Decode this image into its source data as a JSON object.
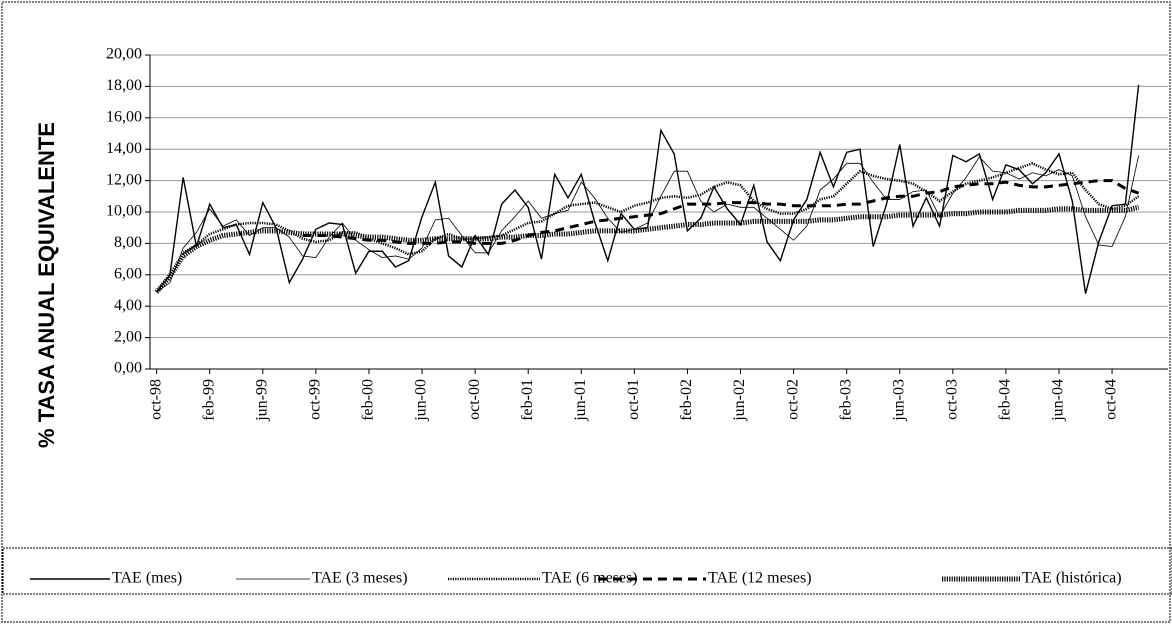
{
  "chart_data": {
    "type": "line",
    "y_axis_label": "% TASA ANUAL EQUIVALENTE",
    "categories": [
      "oct-98",
      null,
      null,
      null,
      "feb-99",
      null,
      null,
      null,
      "jun-99",
      null,
      null,
      null,
      "oct-99",
      null,
      null,
      null,
      "feb-00",
      null,
      null,
      null,
      "jun-00",
      null,
      null,
      null,
      "oct-00",
      null,
      null,
      null,
      "feb-01",
      null,
      null,
      null,
      "jun-01",
      null,
      null,
      null,
      "oct-01",
      null,
      null,
      null,
      "feb-02",
      null,
      null,
      null,
      "jun-02",
      null,
      null,
      null,
      "oct-02",
      null,
      null,
      null,
      "feb-03",
      null,
      null,
      null,
      "jun-03",
      null,
      null,
      null,
      "oct-03",
      null,
      null,
      null,
      "feb-04",
      null,
      null,
      null,
      "jun-04",
      null,
      null,
      null,
      "oct-04",
      null,
      null
    ],
    "ylim": [
      0,
      20
    ],
    "yticks": [
      {
        "value": 0,
        "label": "0,00"
      },
      {
        "value": 2,
        "label": "2,00"
      },
      {
        "value": 4,
        "label": "4,00"
      },
      {
        "value": 6,
        "label": "6,00"
      },
      {
        "value": 8,
        "label": "8,00"
      },
      {
        "value": 10,
        "label": "10,00"
      },
      {
        "value": 12,
        "label": "12,00"
      },
      {
        "value": 14,
        "label": "14,00"
      },
      {
        "value": 16,
        "label": "16,00"
      },
      {
        "value": 18,
        "label": "18,00"
      },
      {
        "value": 20,
        "label": "20,00"
      }
    ],
    "grid": true,
    "legend": "bottom",
    "series": [
      {
        "name": "TAE (mes)",
        "color": "#000000",
        "line_style": "solid",
        "width": 1.4,
        "values": [
          4.9,
          6,
          12.2,
          7.8,
          10.5,
          9.0,
          9.2,
          7.3,
          10.6,
          9.0,
          5.5,
          7.0,
          8.9,
          9.3,
          9.2,
          6.1,
          7.5,
          7.5,
          6.5,
          6.9,
          9.7,
          11.9,
          7.2,
          6.5,
          8.5,
          7.3,
          10.5,
          11.4,
          10.3,
          7.0,
          12.4,
          10.9,
          12.4,
          9.4,
          6.9,
          9.9,
          8.9,
          9.0,
          15.2,
          13.7,
          8.8,
          9.6,
          11.6,
          10.2,
          9.2,
          11.7,
          8.1,
          6.9,
          9.5,
          10.8,
          13.8,
          11.6,
          13.8,
          14.0,
          7.8,
          10.5,
          14.3,
          9.1,
          10.9,
          9.1,
          13.6,
          13.2,
          13.7,
          10.8,
          13.0,
          12.7,
          11.8,
          12.5,
          13.7,
          10.7,
          4.8,
          8.1,
          10.4,
          10.5,
          18.1
        ]
      },
      {
        "name": "TAE (3 meses)",
        "color": "#000000",
        "line_style": "solid",
        "width": 0.8,
        "values": [
          4.9,
          5.5,
          7.7,
          8.7,
          10.2,
          9.1,
          9.5,
          8.5,
          9.0,
          9.0,
          8.4,
          7.2,
          7.1,
          8.4,
          9.3,
          8.2,
          7.6,
          7.1,
          7.2,
          7.0,
          7.7,
          9.5,
          9.6,
          8.5,
          7.4,
          7.4,
          8.8,
          9.7,
          10.7,
          9.6,
          9.9,
          10.1,
          11.9,
          10.9,
          9.6,
          8.7,
          8.9,
          9.3,
          11.0,
          12.6,
          12.6,
          10.7,
          10.0,
          10.5,
          10.3,
          10.3,
          9.6,
          8.9,
          8.2,
          9.1,
          11.4,
          12.1,
          13.1,
          13.1,
          11.9,
          10.8,
          10.8,
          11.3,
          11.4,
          9.7,
          11.2,
          12.2,
          13.5,
          12.6,
          12.5,
          12.1,
          12.5,
          12.3,
          12.7,
          12.3,
          9.7,
          7.9,
          7.8,
          9.7,
          13.6
        ]
      },
      {
        "name": "TAE (6 meses)",
        "color": "#000000",
        "line_style": "dotted",
        "width": 2.5,
        "values": [
          4.9,
          5.8,
          7.4,
          7.9,
          8.6,
          8.9,
          9.2,
          9.3,
          9.3,
          9.2,
          8.8,
          8.3,
          8.1,
          8.2,
          8.7,
          8.7,
          8.3,
          8.0,
          7.7,
          7.3,
          7.5,
          8.3,
          8.6,
          8.3,
          8.3,
          8.4,
          8.5,
          8.9,
          9.3,
          9.4,
          9.9,
          10.4,
          10.5,
          10.6,
          10.3,
          10.0,
          10.4,
          10.6,
          10.9,
          11.0,
          10.9,
          11.1,
          11.6,
          11.9,
          11.7,
          10.7,
          10.2,
          9.9,
          9.9,
          10.2,
          10.8,
          11.0,
          11.8,
          12.6,
          12.3,
          12.1,
          12.0,
          11.8,
          11.3,
          10.7,
          11.3,
          11.8,
          12.0,
          12.2,
          12.5,
          12.8,
          13.1,
          12.7,
          12.4,
          12.5,
          11.4,
          10.5,
          10.2,
          10.4,
          11.0
        ]
      },
      {
        "name": "TAE (12 meses)",
        "color": "#000000",
        "line_style": "dashed",
        "width": 3,
        "values": [
          null,
          null,
          null,
          null,
          null,
          null,
          null,
          null,
          null,
          null,
          null,
          8.5,
          8.5,
          8.5,
          8.4,
          8.3,
          8.2,
          8.2,
          8.1,
          8.0,
          8.0,
          8.0,
          8.1,
          8.1,
          8.0,
          8.0,
          8.0,
          8.2,
          8.5,
          8.7,
          8.8,
          9.0,
          9.2,
          9.4,
          9.5,
          9.6,
          9.7,
          9.8,
          9.9,
          10.2,
          10.5,
          10.5,
          10.5,
          10.6,
          10.6,
          10.6,
          10.5,
          10.5,
          10.4,
          10.4,
          10.4,
          10.4,
          10.5,
          10.5,
          10.7,
          10.9,
          11.0,
          11.0,
          11.2,
          11.3,
          11.6,
          11.7,
          11.8,
          11.8,
          11.9,
          11.7,
          11.6,
          11.6,
          11.7,
          11.8,
          11.9,
          12.0,
          12.0,
          11.5,
          11.2
        ]
      },
      {
        "name": "TAE (histórica)",
        "color": "#000000",
        "line_style": "dotted",
        "width": 5,
        "values": [
          4.9,
          5.9,
          7.2,
          7.8,
          8.2,
          8.5,
          8.6,
          8.7,
          8.8,
          8.8,
          8.7,
          8.6,
          8.6,
          8.6,
          8.6,
          8.5,
          8.4,
          8.4,
          8.3,
          8.2,
          8.2,
          8.3,
          8.3,
          8.3,
          8.3,
          8.3,
          8.4,
          8.4,
          8.5,
          8.5,
          8.6,
          8.6,
          8.7,
          8.8,
          8.8,
          8.8,
          8.8,
          8.9,
          9.0,
          9.1,
          9.2,
          9.2,
          9.3,
          9.3,
          9.3,
          9.4,
          9.4,
          9.4,
          9.4,
          9.4,
          9.5,
          9.5,
          9.6,
          9.7,
          9.7,
          9.7,
          9.8,
          9.8,
          9.8,
          9.8,
          9.9,
          9.9,
          10.0,
          10.0,
          10.0,
          10.1,
          10.1,
          10.1,
          10.2,
          10.2,
          10.1,
          10.1,
          10.1,
          10.1,
          10.3
        ]
      }
    ]
  }
}
